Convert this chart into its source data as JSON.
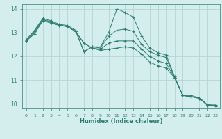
{
  "title": "",
  "xlabel": "Humidex (Indice chaleur)",
  "ylabel": "",
  "bg_color": "#d4eeed",
  "line_color": "#2e7d6e",
  "grid_color": "#b0d0cc",
  "xlim": [
    -0.5,
    23.5
  ],
  "ylim": [
    9.8,
    14.2
  ],
  "xticks": [
    0,
    1,
    2,
    3,
    4,
    5,
    6,
    7,
    8,
    9,
    10,
    11,
    12,
    13,
    14,
    15,
    16,
    17,
    18,
    19,
    20,
    21,
    22,
    23
  ],
  "yticks": [
    10,
    11,
    12,
    13,
    14
  ],
  "lines": [
    {
      "x": [
        0,
        1,
        2,
        3,
        4,
        5,
        6,
        7,
        8,
        9,
        10,
        11,
        12,
        13,
        14,
        15,
        16,
        17,
        18,
        19,
        20,
        21,
        22,
        23
      ],
      "y": [
        12.7,
        13.1,
        13.6,
        13.5,
        13.35,
        13.3,
        13.1,
        12.2,
        12.4,
        12.4,
        13.0,
        14.0,
        13.85,
        13.65,
        12.85,
        12.35,
        12.15,
        12.05,
        11.15,
        10.35,
        10.35,
        10.25,
        9.95,
        9.95
      ],
      "marker": "+"
    },
    {
      "x": [
        0,
        1,
        2,
        3,
        4,
        5,
        6,
        7,
        8,
        9,
        10,
        11,
        12,
        13,
        14,
        15,
        16,
        17,
        18,
        19,
        20,
        21,
        22,
        23
      ],
      "y": [
        12.68,
        13.05,
        13.55,
        13.45,
        13.32,
        13.25,
        13.05,
        12.2,
        12.4,
        12.35,
        12.85,
        13.1,
        13.15,
        13.05,
        12.5,
        12.2,
        12.05,
        11.95,
        11.1,
        10.35,
        10.3,
        10.25,
        9.95,
        9.92
      ],
      "marker": "+"
    },
    {
      "x": [
        0,
        1,
        2,
        3,
        4,
        5,
        6,
        7,
        8,
        9,
        10,
        11,
        12,
        13,
        14,
        15,
        16,
        17,
        18,
        19,
        20,
        21,
        22,
        23
      ],
      "y": [
        12.65,
        13.0,
        13.55,
        13.45,
        13.32,
        13.25,
        13.05,
        12.55,
        12.35,
        12.3,
        12.55,
        12.65,
        12.65,
        12.65,
        12.3,
        12.0,
        11.8,
        11.7,
        11.1,
        10.35,
        10.3,
        10.25,
        9.95,
        9.92
      ],
      "marker": "+"
    },
    {
      "x": [
        0,
        1,
        2,
        3,
        4,
        5,
        6,
        7,
        8,
        9,
        10,
        11,
        12,
        13,
        14,
        15,
        16,
        17,
        18,
        19,
        20,
        21,
        22,
        23
      ],
      "y": [
        12.65,
        12.95,
        13.5,
        13.4,
        13.3,
        13.25,
        13.05,
        12.55,
        12.35,
        12.25,
        12.3,
        12.35,
        12.4,
        12.35,
        12.1,
        11.75,
        11.6,
        11.5,
        11.1,
        10.35,
        10.3,
        10.22,
        9.93,
        9.9
      ],
      "marker": "+"
    }
  ]
}
